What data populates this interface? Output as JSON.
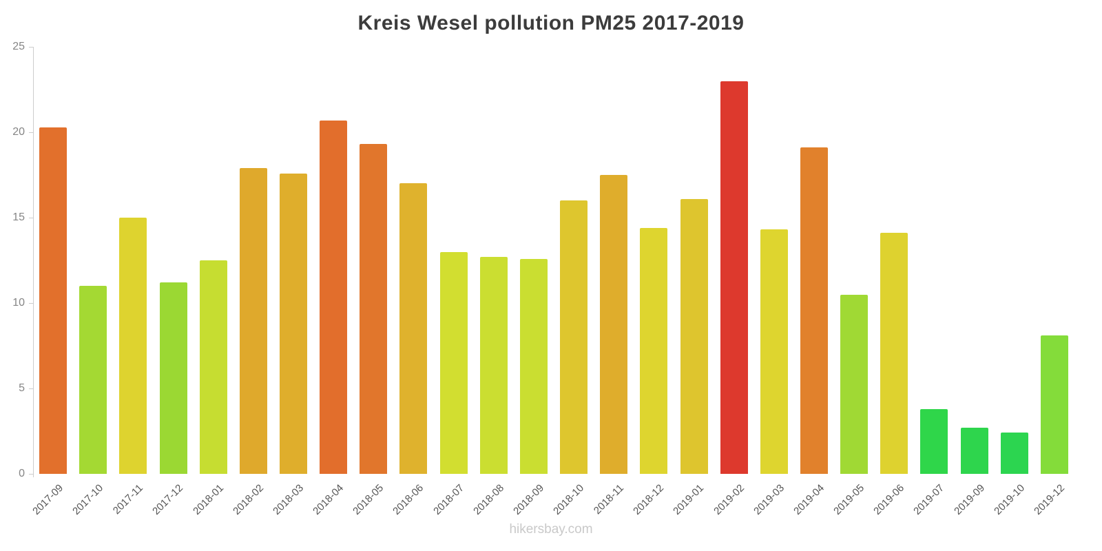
{
  "title": "Kreis Wesel pollution PM25 2017-2019",
  "footer": "hikersbay.com",
  "styles": {
    "title_color": "#3c3c3c",
    "axis_color": "#cccccc",
    "y_label_color": "#858585",
    "x_label_color": "#565656",
    "footer_color": "#c9c9c9",
    "background": "#ffffff"
  },
  "chart_data": {
    "type": "bar",
    "title": "Kreis Wesel pollution PM25 2017-2019",
    "xlabel": "",
    "ylabel": "",
    "ylim": [
      0,
      25
    ],
    "yticks": [
      0,
      5,
      10,
      15,
      20,
      25
    ],
    "grid": false,
    "legend_position": "none",
    "categories": [
      "2017-09",
      "2017-10",
      "2017-11",
      "2017-12",
      "2018-01",
      "2018-02",
      "2018-03",
      "2018-04",
      "2018-05",
      "2018-06",
      "2018-07",
      "2018-08",
      "2018-09",
      "2018-10",
      "2018-11",
      "2018-12",
      "2019-01",
      "2019-02",
      "2019-03",
      "2019-04",
      "2019-05",
      "2019-06",
      "2019-07",
      "2019-09",
      "2019-10",
      "2019-12"
    ],
    "values": [
      20.3,
      11.0,
      15.0,
      11.2,
      12.5,
      17.9,
      17.6,
      20.7,
      19.3,
      17.0,
      13.0,
      12.7,
      12.6,
      16.0,
      17.5,
      14.4,
      16.1,
      23.0,
      14.3,
      19.1,
      10.5,
      14.1,
      3.8,
      2.7,
      2.4,
      8.1
    ],
    "bar_colors": [
      "#e2702c",
      "#a4d933",
      "#ded32f",
      "#9bd833",
      "#c6dd31",
      "#dfa92c",
      "#dfae2c",
      "#e26e2c",
      "#e1762c",
      "#dfb22d",
      "#d2de30",
      "#cbde31",
      "#cade31",
      "#dec62e",
      "#dfad2c",
      "#ded52f",
      "#dec52e",
      "#dd392d",
      "#ded52f",
      "#e1812c",
      "#a0d934",
      "#ded22f",
      "#2fd64a",
      "#2ed54d",
      "#2cd550",
      "#84dc3a"
    ]
  }
}
